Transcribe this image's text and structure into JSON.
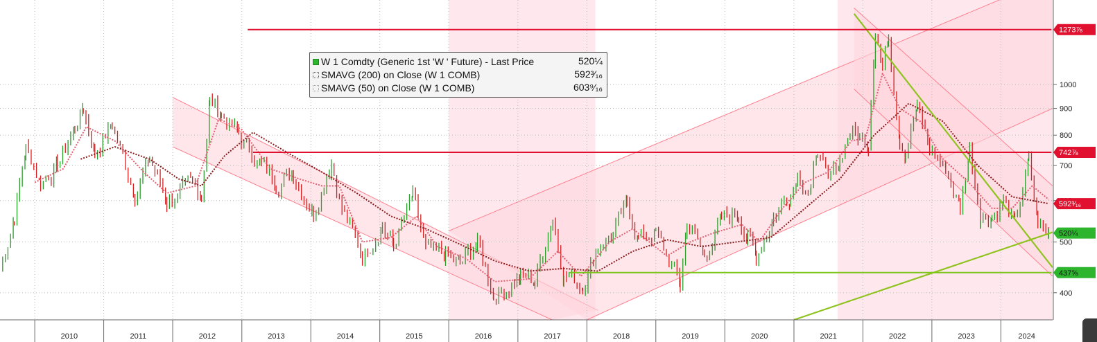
{
  "legend": {
    "rows": [
      {
        "label": "W 1 Comdty (Generic 1st 'W ' Future) - Last Price",
        "value": "520¼"
      },
      {
        "label": "SMAVG (200)  on Close (W 1 COMB)",
        "value": "592³⁄₁₆"
      },
      {
        "label": "SMAVG (50)  on Close (W 1 COMB)",
        "value": "603⁹⁄₁₆"
      }
    ]
  },
  "colors": {
    "price_up": "#2a9d2a",
    "price_down": "#d42020",
    "sma200": "#8b1a1a",
    "sma50": "#e06070",
    "resistance": "#e0102e",
    "support": "#7cc41a",
    "channel_fill": "#ffd6de",
    "channel_edge": "#ff8090",
    "grid": "#b8b8b8"
  },
  "chart_data": {
    "type": "line",
    "y_scale": "log",
    "ylim": [
      355,
      1450
    ],
    "y_ticks": [
      400,
      500,
      600,
      700,
      800,
      900,
      1000
    ],
    "y_tick_labels": [
      "400",
      "500",
      "600",
      "700",
      "800",
      "900",
      "1000"
    ],
    "x_labels": [
      "2010",
      "2011",
      "2012",
      "2013",
      "2014",
      "2015",
      "2016",
      "2017",
      "2018",
      "2019",
      "2020",
      "2021",
      "2022",
      "2023",
      "2024"
    ],
    "xlim": [
      "2009-07-01",
      "2024-10-01"
    ],
    "price_tags": [
      {
        "label": "1273⅞",
        "value": 1273,
        "color": "#e0102e"
      },
      {
        "label": "742⅞",
        "value": 742,
        "color": "#e0102e"
      },
      {
        "label": "592³⁄₁₆",
        "value": 592,
        "color": "#e0102e"
      },
      {
        "label": "520¼",
        "value": 520,
        "color": "#2db52d"
      },
      {
        "label": "437⅝",
        "value": 437,
        "color": "#2db52d"
      }
    ],
    "horizontal_lines": [
      {
        "value": 1273,
        "from": "2013-02-01",
        "to": "2024-09-25",
        "color": "#e0102e"
      },
      {
        "value": 742,
        "from": "2013-03-01",
        "to": "2024-09-25",
        "color": "#e0102e"
      },
      {
        "value": 437,
        "from": "2017-10-01",
        "to": "2024-09-25",
        "color": "#7cc41a"
      }
    ],
    "trendlines": [
      {
        "from": [
          "2021-11-15",
          1365
        ],
        "to": [
          "2024-10-01",
          447
        ],
        "color": "#8fc31f"
      },
      {
        "from": [
          "2021-01-01",
          355
        ],
        "to": [
          "2024-10-01",
          522
        ],
        "color": "#8fc31f"
      }
    ],
    "channels": [
      {
        "upper": [
          [
            "2012-01-01",
            945
          ],
          [
            "2018-03-01",
            370
          ]
        ],
        "lower": [
          [
            "2012-01-01",
            760
          ],
          [
            "2017-07-01",
            355
          ]
        ]
      },
      {
        "upper": [
          [
            "2016-01-01",
            525
          ],
          [
            "2024-10-01",
            1600
          ]
        ],
        "lower": [
          [
            "2018-01-01",
            355
          ],
          [
            "2024-10-01",
            900
          ]
        ]
      },
      {
        "upper": [
          [
            "2021-11-15",
            1400
          ],
          [
            "2024-10-01",
            640
          ]
        ],
        "lower": [
          [
            "2021-11-15",
            980
          ],
          [
            "2024-10-01",
            430
          ]
        ]
      }
    ],
    "shaded_regions": [
      {
        "from": "2016-01-01",
        "to": "2018-02-15"
      },
      {
        "from": "2021-08-20",
        "to": "2024-10-01"
      }
    ],
    "price_keypoints": [
      [
        "2009-07-01",
        440
      ],
      [
        "2009-09-15",
        560
      ],
      [
        "2009-11-15",
        760
      ],
      [
        "2010-02-01",
        650
      ],
      [
        "2010-05-01",
        700
      ],
      [
        "2010-08-01",
        830
      ],
      [
        "2010-09-15",
        900
      ],
      [
        "2010-11-15",
        740
      ],
      [
        "2011-02-15",
        840
      ],
      [
        "2011-06-15",
        620
      ],
      [
        "2011-09-01",
        720
      ],
      [
        "2011-12-01",
        600
      ],
      [
        "2012-04-15",
        640
      ],
      [
        "2012-06-01",
        620
      ],
      [
        "2012-07-15",
        930
      ],
      [
        "2012-09-15",
        880
      ],
      [
        "2012-12-15",
        800
      ],
      [
        "2013-04-15",
        700
      ],
      [
        "2013-07-01",
        650
      ],
      [
        "2013-10-01",
        680
      ],
      [
        "2014-01-15",
        570
      ],
      [
        "2014-04-20",
        720
      ],
      [
        "2014-06-15",
        580
      ],
      [
        "2014-10-01",
        470
      ],
      [
        "2015-01-15",
        540
      ],
      [
        "2015-03-15",
        490
      ],
      [
        "2015-06-25",
        610
      ],
      [
        "2015-09-01",
        480
      ],
      [
        "2015-12-15",
        470
      ],
      [
        "2016-03-01",
        450
      ],
      [
        "2016-06-01",
        500
      ],
      [
        "2016-08-25",
        395
      ],
      [
        "2016-11-01",
        410
      ],
      [
        "2017-01-15",
        430
      ],
      [
        "2017-04-01",
        420
      ],
      [
        "2017-07-05",
        560
      ],
      [
        "2017-09-01",
        435
      ],
      [
        "2017-12-10",
        415
      ],
      [
        "2018-03-01",
        490
      ],
      [
        "2018-05-20",
        520
      ],
      [
        "2018-08-01",
        590
      ],
      [
        "2018-10-01",
        510
      ],
      [
        "2019-01-01",
        520
      ],
      [
        "2019-05-10",
        415
      ],
      [
        "2019-06-15",
        550
      ],
      [
        "2019-09-15",
        470
      ],
      [
        "2019-12-15",
        550
      ],
      [
        "2020-03-15",
        570
      ],
      [
        "2020-05-01",
        510
      ],
      [
        "2020-06-15",
        470
      ],
      [
        "2020-09-15",
        560
      ],
      [
        "2020-12-15",
        620
      ],
      [
        "2021-01-20",
        680
      ],
      [
        "2021-04-01",
        620
      ],
      [
        "2021-05-07",
        760
      ],
      [
        "2021-07-01",
        640
      ],
      [
        "2021-09-01",
        720
      ],
      [
        "2021-10-25",
        820
      ],
      [
        "2021-12-15",
        790
      ],
      [
        "2022-01-30",
        780
      ],
      [
        "2022-03-08",
        1300
      ],
      [
        "2022-04-15",
        1080
      ],
      [
        "2022-05-17",
        1240
      ],
      [
        "2022-07-15",
        800
      ],
      [
        "2022-08-15",
        750
      ],
      [
        "2022-10-15",
        900
      ],
      [
        "2022-12-20",
        760
      ],
      [
        "2023-03-15",
        690
      ],
      [
        "2023-05-31",
        580
      ],
      [
        "2023-07-20",
        760
      ],
      [
        "2023-09-15",
        560
      ],
      [
        "2023-11-15",
        560
      ],
      [
        "2024-01-15",
        600
      ],
      [
        "2024-03-15",
        540
      ],
      [
        "2024-05-28",
        710
      ],
      [
        "2024-07-15",
        540
      ],
      [
        "2024-09-10",
        520
      ]
    ],
    "sma200_keypoints": [
      [
        "2010-09-01",
        720
      ],
      [
        "2011-03-01",
        760
      ],
      [
        "2011-09-01",
        720
      ],
      [
        "2012-02-01",
        660
      ],
      [
        "2012-06-01",
        640
      ],
      [
        "2012-10-01",
        730
      ],
      [
        "2013-03-01",
        810
      ],
      [
        "2013-09-01",
        740
      ],
      [
        "2014-03-01",
        680
      ],
      [
        "2014-09-01",
        620
      ],
      [
        "2015-03-01",
        560
      ],
      [
        "2015-09-01",
        530
      ],
      [
        "2016-03-01",
        495
      ],
      [
        "2016-09-01",
        460
      ],
      [
        "2017-03-01",
        440
      ],
      [
        "2017-09-01",
        445
      ],
      [
        "2018-03-01",
        440
      ],
      [
        "2018-09-01",
        480
      ],
      [
        "2019-03-01",
        505
      ],
      [
        "2019-09-01",
        490
      ],
      [
        "2020-03-01",
        500
      ],
      [
        "2020-09-01",
        510
      ],
      [
        "2021-03-01",
        580
      ],
      [
        "2021-09-01",
        660
      ],
      [
        "2022-03-01",
        800
      ],
      [
        "2022-09-01",
        920
      ],
      [
        "2023-03-01",
        850
      ],
      [
        "2023-09-01",
        700
      ],
      [
        "2024-03-01",
        610
      ],
      [
        "2024-09-10",
        592
      ]
    ],
    "sma50_keypoints": [
      [
        "2010-01-01",
        650
      ],
      [
        "2010-06-01",
        690
      ],
      [
        "2010-10-01",
        830
      ],
      [
        "2011-03-01",
        780
      ],
      [
        "2011-08-01",
        680
      ],
      [
        "2011-12-01",
        620
      ],
      [
        "2012-05-01",
        640
      ],
      [
        "2012-09-01",
        860
      ],
      [
        "2013-01-01",
        820
      ],
      [
        "2013-06-01",
        690
      ],
      [
        "2013-11-01",
        660
      ],
      [
        "2014-03-01",
        640
      ],
      [
        "2014-06-01",
        640
      ],
      [
        "2014-10-01",
        500
      ],
      [
        "2015-03-01",
        510
      ],
      [
        "2015-07-15",
        560
      ],
      [
        "2015-11-01",
        490
      ],
      [
        "2016-04-01",
        465
      ],
      [
        "2016-09-01",
        420
      ],
      [
        "2017-03-01",
        425
      ],
      [
        "2017-08-01",
        480
      ],
      [
        "2017-12-01",
        430
      ],
      [
        "2018-05-01",
        500
      ],
      [
        "2018-09-01",
        530
      ],
      [
        "2019-03-01",
        470
      ],
      [
        "2019-07-01",
        500
      ],
      [
        "2019-11-01",
        520
      ],
      [
        "2020-04-01",
        540
      ],
      [
        "2020-07-01",
        500
      ],
      [
        "2020-11-01",
        580
      ],
      [
        "2021-03-01",
        650
      ],
      [
        "2021-07-01",
        680
      ],
      [
        "2021-11-01",
        780
      ],
      [
        "2022-01-15",
        790
      ],
      [
        "2022-04-15",
        1050
      ],
      [
        "2022-07-15",
        900
      ],
      [
        "2022-11-01",
        850
      ],
      [
        "2023-03-01",
        720
      ],
      [
        "2023-07-15",
        650
      ],
      [
        "2023-11-15",
        580
      ],
      [
        "2024-03-01",
        580
      ],
      [
        "2024-06-15",
        640
      ],
      [
        "2024-09-10",
        603
      ]
    ]
  }
}
